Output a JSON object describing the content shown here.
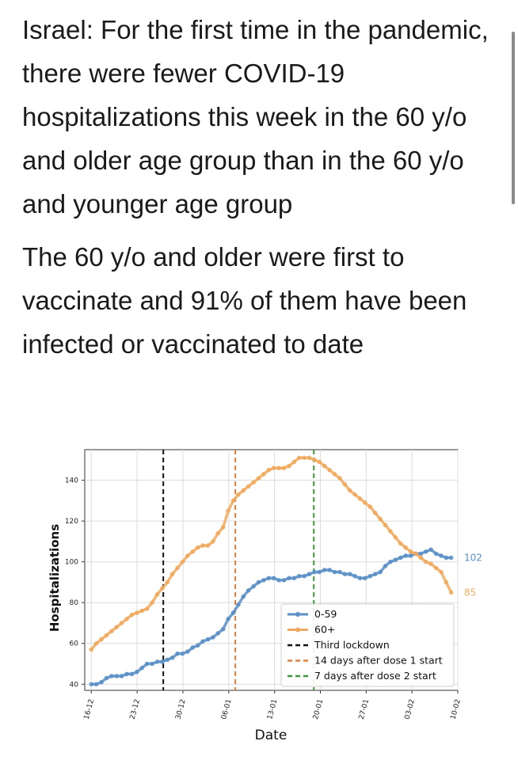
{
  "headline": {
    "paragraph1": "Israel: For the first time in the pandemic, there were fewer COVID-19 hospitalizations this week in the 60 y/o and older age group than in the 60 y/o and younger age group",
    "paragraph2": "The 60 y/o and older were first to vaccinate and 91% of them have been infected or vaccinated to date"
  },
  "chart_data": {
    "type": "line",
    "xlabel": "Date",
    "ylabel": "Hospitalizations",
    "x_ticks": [
      "16-12",
      "23-12",
      "30-12",
      "06-01",
      "13-01",
      "20-01",
      "27-01",
      "03-02",
      "10-02"
    ],
    "y_ticks": [
      40,
      60,
      80,
      100,
      120,
      140
    ],
    "x_range_days": [
      -1,
      56
    ],
    "ylim": [
      37,
      155
    ],
    "grid": true,
    "legend_position": "lower-right",
    "series": [
      {
        "name": "0-59",
        "color": "#5b8fc6",
        "values": [
          40,
          40,
          41,
          43,
          44,
          44,
          44,
          45,
          45,
          46,
          48,
          50,
          50,
          51,
          51,
          52,
          53,
          55,
          55,
          56,
          58,
          59,
          61,
          62,
          63,
          65,
          67,
          72,
          75,
          79,
          83,
          86,
          88,
          90,
          91,
          92,
          92,
          91,
          91,
          92,
          92,
          93,
          93,
          94,
          95,
          95,
          96,
          96,
          95,
          95,
          94,
          94,
          93,
          92,
          92,
          93,
          94,
          95,
          98,
          100,
          101,
          102,
          103,
          103,
          104,
          104,
          105,
          106,
          104,
          103,
          102,
          102
        ]
      },
      {
        "name": "60+",
        "color": "#f0a95e",
        "values": [
          57,
          60,
          62,
          64,
          66,
          68,
          70,
          72,
          74,
          75,
          76,
          77,
          80,
          84,
          87,
          90,
          94,
          97,
          100,
          103,
          105,
          107,
          108,
          108,
          110,
          114,
          117,
          125,
          130,
          133,
          135,
          137,
          139,
          141,
          143,
          145,
          146,
          146,
          146,
          147,
          149,
          151,
          151,
          151,
          150,
          149,
          147,
          145,
          143,
          141,
          138,
          135,
          133,
          131,
          129,
          127,
          124,
          121,
          118,
          115,
          112,
          109,
          107,
          105,
          104,
          102,
          100,
          99,
          97,
          95,
          90,
          85
        ]
      }
    ],
    "end_labels": [
      {
        "series": "0-59",
        "text": "102"
      },
      {
        "series": "60+",
        "text": "85"
      }
    ],
    "vlines": [
      {
        "name": "Third lockdown",
        "day": 11,
        "color": "#111111"
      },
      {
        "name": "14 days after dose 1 start",
        "day": 22,
        "color": "#e0803c"
      },
      {
        "name": "7 days after dose 2 start",
        "day": 34,
        "color": "#3a9a3a"
      }
    ]
  }
}
